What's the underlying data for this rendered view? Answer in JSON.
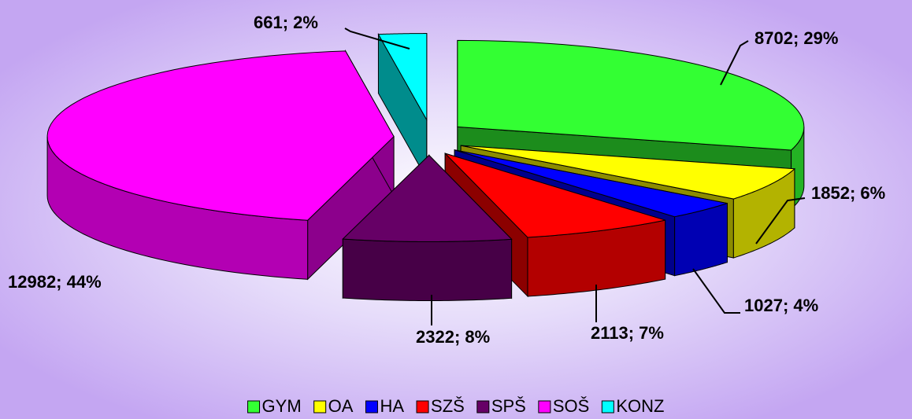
{
  "chart_data": {
    "type": "pie",
    "categories": [
      "GYM",
      "OA",
      "HA",
      "SZŠ",
      "SPŠ",
      "SOŠ",
      "KONZ"
    ],
    "values": [
      8702,
      1852,
      1027,
      2113,
      2322,
      12982,
      661
    ],
    "value_labels": [
      "8702; 29%",
      "1852; 6%",
      "1027; 4%",
      "2113; 7%",
      "2322; 8%",
      "12982; 44%",
      "661; 2%"
    ],
    "colors": [
      "#33ff33",
      "#ffff00",
      "#0000ff",
      "#ff0000",
      "#660066",
      "#ff00ff",
      "#00ffff"
    ],
    "legend": "bottom"
  }
}
